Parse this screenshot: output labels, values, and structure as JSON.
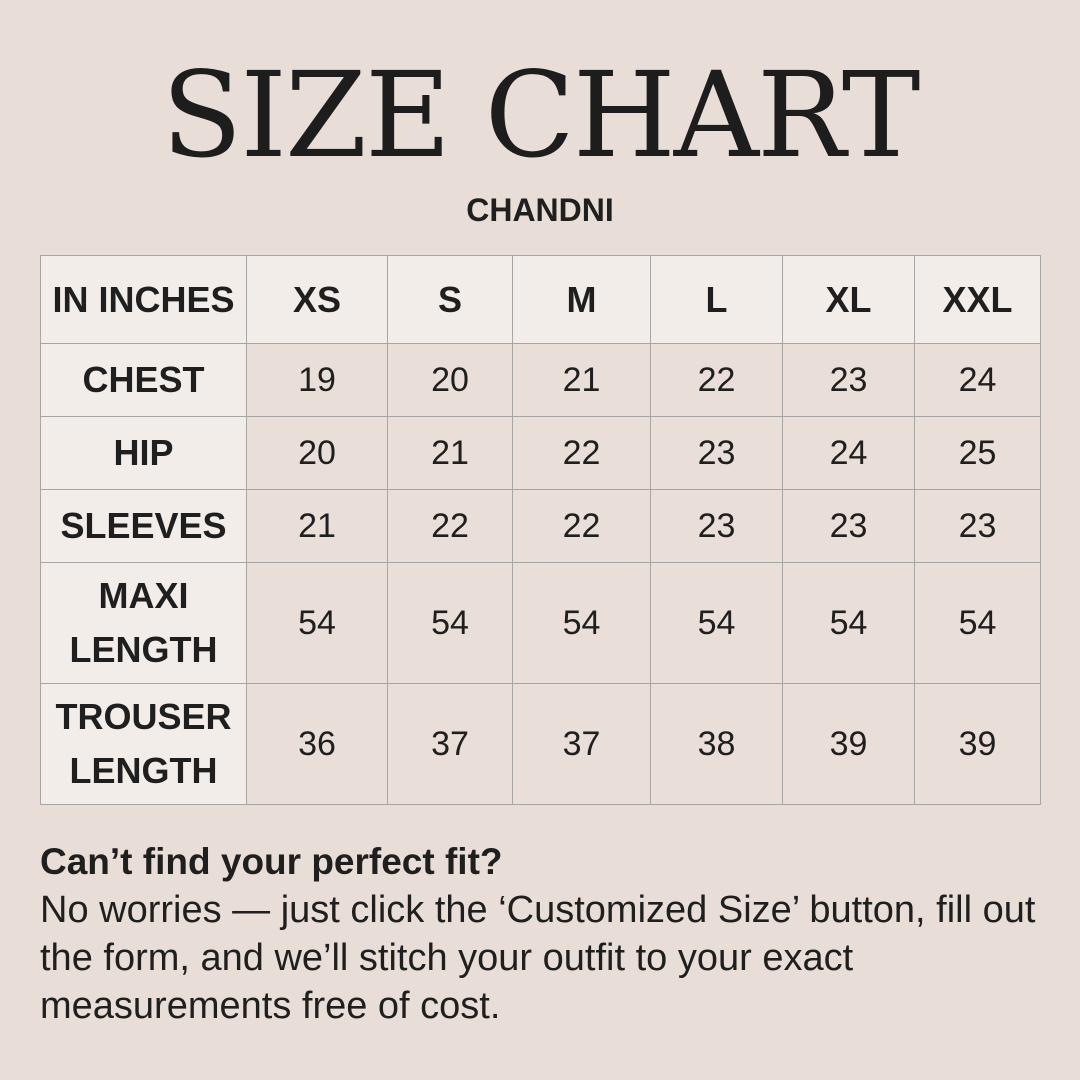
{
  "title": "SIZE CHART",
  "subtitle": "CHANDNI",
  "table": {
    "corner": "IN INCHES",
    "sizes": [
      "XS",
      "S",
      "M",
      "L",
      "XL",
      "XXL"
    ],
    "rows": [
      {
        "label": "CHEST",
        "values": [
          "19",
          "20",
          "21",
          "22",
          "23",
          "24"
        ]
      },
      {
        "label": "HIP",
        "values": [
          "20",
          "21",
          "22",
          "23",
          "24",
          "25"
        ]
      },
      {
        "label": "SLEEVES",
        "values": [
          "21",
          "22",
          "22",
          "23",
          "23",
          "23"
        ]
      },
      {
        "label": "MAXI LENGTH",
        "values": [
          "54",
          "54",
          "54",
          "54",
          "54",
          "54"
        ]
      },
      {
        "label": "TROUSER LENGTH",
        "values": [
          "36",
          "37",
          "37",
          "38",
          "39",
          "39"
        ]
      }
    ]
  },
  "note": {
    "heading": "Can’t find your perfect fit?",
    "body": "No worries — just click the ‘Customized Size’ button, fill out the form, and we’ll stitch your outfit to your exact measurements free of cost."
  }
}
